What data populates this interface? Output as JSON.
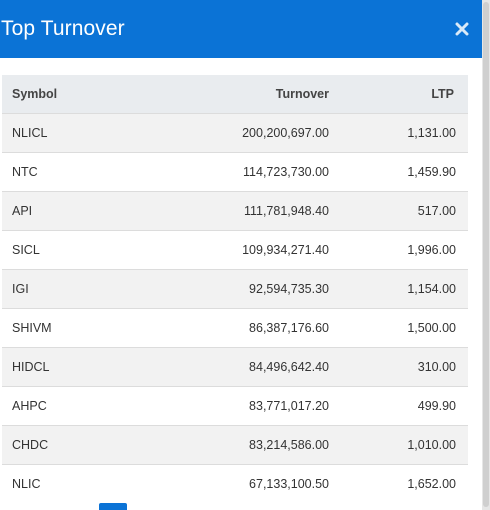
{
  "modal": {
    "title": "Top Turnover",
    "close_icon": "close-icon"
  },
  "table": {
    "headers": {
      "symbol": "Symbol",
      "turnover": "Turnover",
      "ltp": "LTP"
    },
    "rows": [
      {
        "symbol": "NLICL",
        "turnover": "200,200,697.00",
        "ltp": "1,131.00"
      },
      {
        "symbol": "NTC",
        "turnover": "114,723,730.00",
        "ltp": "1,459.90"
      },
      {
        "symbol": "API",
        "turnover": "111,781,948.40",
        "ltp": "517.00"
      },
      {
        "symbol": "SICL",
        "turnover": "109,934,271.40",
        "ltp": "1,996.00"
      },
      {
        "symbol": "IGI",
        "turnover": "92,594,735.30",
        "ltp": "1,154.00"
      },
      {
        "symbol": "SHIVM",
        "turnover": "86,387,176.60",
        "ltp": "1,500.00"
      },
      {
        "symbol": "HIDCL",
        "turnover": "84,496,642.40",
        "ltp": "310.00"
      },
      {
        "symbol": "AHPC",
        "turnover": "83,771,017.20",
        "ltp": "499.90"
      },
      {
        "symbol": "CHDC",
        "turnover": "83,214,586.00",
        "ltp": "1,010.00"
      },
      {
        "symbol": "NLIC",
        "turnover": "67,133,100.50",
        "ltp": "1,652.00"
      }
    ]
  },
  "colors": {
    "header_bg": "#0b73d6",
    "table_head_bg": "#e9ecef",
    "row_stripe": "#f2f2f2"
  }
}
